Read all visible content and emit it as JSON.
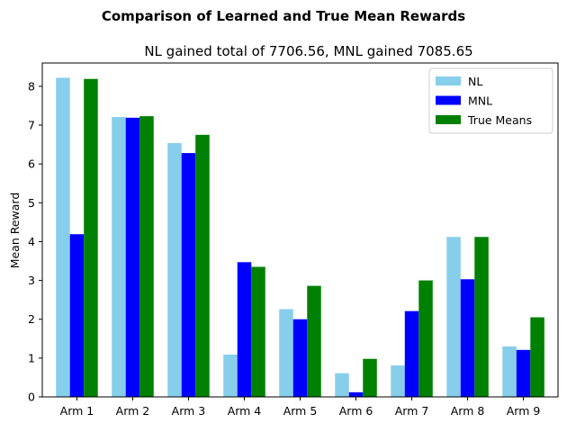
{
  "chart_data": {
    "type": "bar",
    "suptitle": "Comparison of Learned  and True Mean Rewards",
    "title": "NL gained total of 7706.56, MNL gained 7085.65",
    "xlabel": "",
    "ylabel": "Mean Reward",
    "ylim": [
      0,
      8.6
    ],
    "yticks": [
      0,
      1,
      2,
      3,
      4,
      5,
      6,
      7,
      8
    ],
    "categories": [
      "Arm 1",
      "Arm 2",
      "Arm 3",
      "Arm 4",
      "Arm 5",
      "Arm 6",
      "Arm 7",
      "Arm 8",
      "Arm 9"
    ],
    "series": [
      {
        "name": "NL",
        "color": "#87CEEB",
        "values": [
          8.22,
          7.21,
          6.54,
          1.09,
          2.26,
          0.61,
          0.81,
          4.12,
          1.3
        ]
      },
      {
        "name": "MNL",
        "color": "#0000FF",
        "values": [
          4.19,
          7.19,
          6.28,
          3.47,
          2.0,
          0.12,
          2.21,
          3.03,
          1.21
        ]
      },
      {
        "name": "True Means",
        "color": "#008000",
        "values": [
          8.19,
          7.23,
          6.75,
          3.35,
          2.86,
          0.98,
          3.0,
          4.12,
          2.05
        ]
      }
    ],
    "legend_position": "top-right",
    "grid": false
  }
}
